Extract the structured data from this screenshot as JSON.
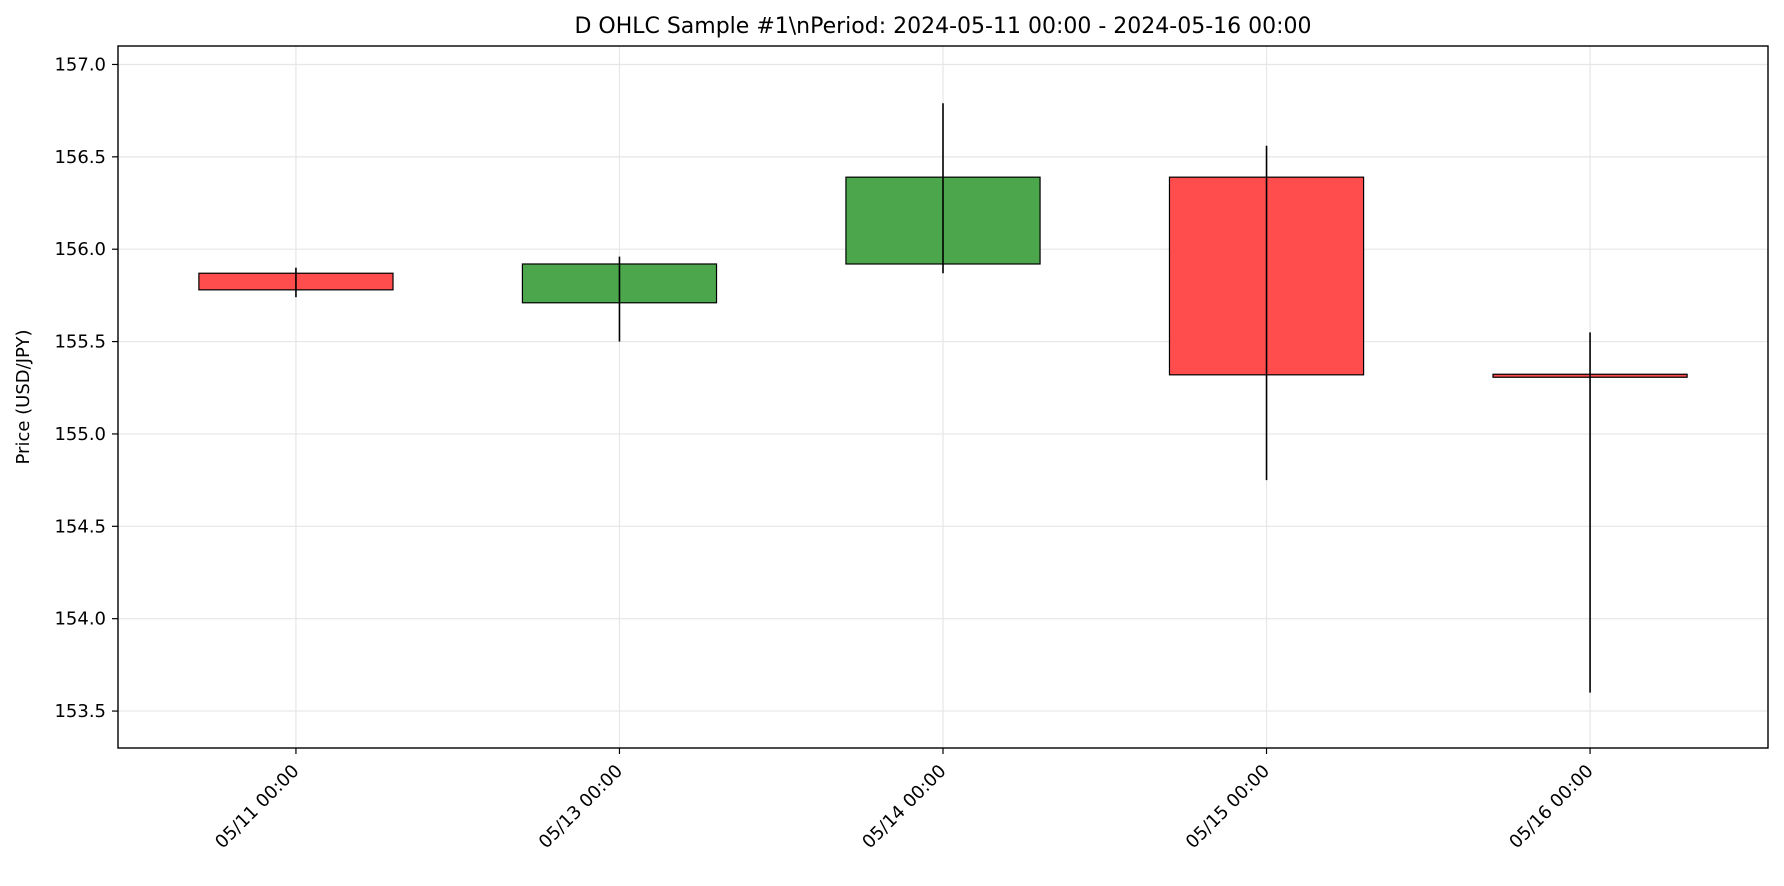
{
  "chart_data": {
    "type": "candlestick",
    "title": "D OHLC Sample #1\\nPeriod: 2024-05-11 00:00 - 2024-05-16 00:00",
    "xlabel": "",
    "ylabel": "Price (USD/JPY)",
    "ylim": [
      153.3,
      157.1
    ],
    "y_ticks": [
      153.5,
      154.0,
      154.5,
      155.0,
      155.5,
      156.0,
      156.5,
      157.0
    ],
    "y_tick_labels": [
      "153.5",
      "154.0",
      "154.5",
      "155.0",
      "155.5",
      "156.0",
      "156.5",
      "157.0"
    ],
    "categories": [
      "05/11 00:00",
      "05/13 00:00",
      "05/14 00:00",
      "05/15 00:00",
      "05/16 00:00"
    ],
    "grid": true,
    "candles": [
      {
        "label": "05/11 00:00",
        "open": 155.87,
        "high": 155.9,
        "low": 155.74,
        "close": 155.78
      },
      {
        "label": "05/13 00:00",
        "open": 155.71,
        "high": 155.96,
        "low": 155.5,
        "close": 155.92
      },
      {
        "label": "05/14 00:00",
        "open": 155.92,
        "high": 156.79,
        "low": 155.87,
        "close": 156.39
      },
      {
        "label": "05/15 00:00",
        "open": 156.39,
        "high": 156.56,
        "low": 154.75,
        "close": 155.32
      },
      {
        "label": "05/16 00:00",
        "open": 155.32,
        "high": 155.55,
        "low": 153.6,
        "close": 155.31
      }
    ],
    "colors": {
      "up": "#4ca64c",
      "down": "#ff4c4c",
      "edge": "#000000",
      "grid": "#e6e6e6"
    }
  }
}
